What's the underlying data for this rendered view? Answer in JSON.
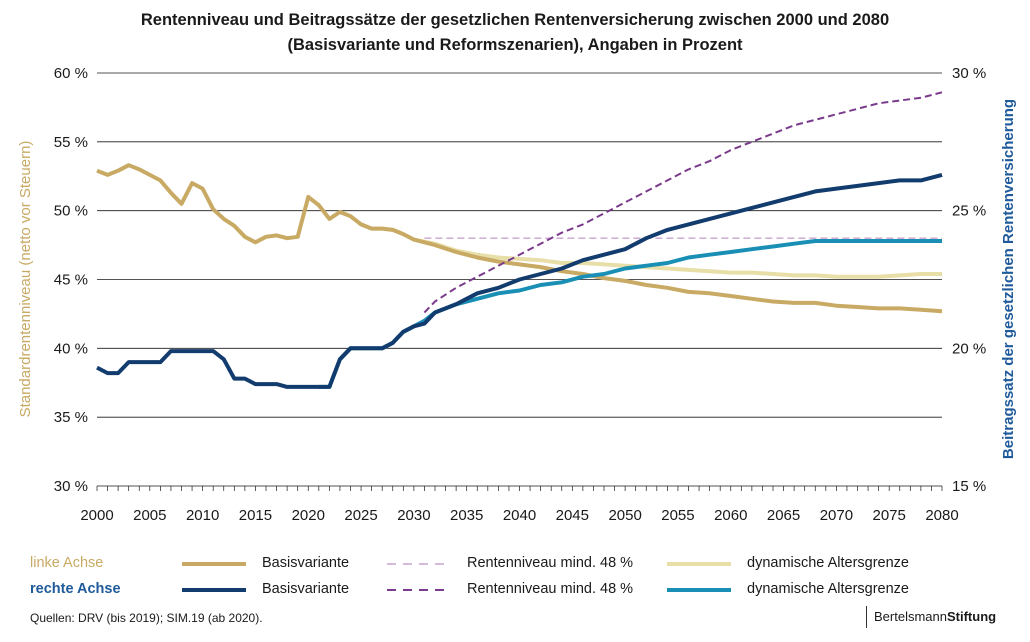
{
  "title_line1": "Rentenniveau und Beitragssätze der gesetzlichen Rentenversicherung zwischen 2000 und 2080",
  "title_line2": "(Basisvariante und Reformszenarien), Angaben in Prozent",
  "colors": {
    "basis_left": "#c8aa64",
    "basis_right": "#123b6e",
    "rn48_left": "#c9a3cf",
    "rn48_right": "#7b3b8c",
    "dyn_left": "#e8dea8",
    "dyn_right": "#1a8fb6",
    "left_axis_title": "#c8aa64",
    "right_axis_title": "#1f5a9a"
  },
  "chart_data": {
    "type": "line",
    "title": "Rentenniveau und Beitragssätze der gesetzlichen Rentenversicherung zwischen 2000 und 2080 (Basisvariante und Reformszenarien), Angaben in Prozent",
    "x_ticks": [
      "2000",
      "2005",
      "2010",
      "2015",
      "2020",
      "2025",
      "2030",
      "2035",
      "2040",
      "2045",
      "2050",
      "2055",
      "2060",
      "2065",
      "2070",
      "2075",
      "2080"
    ],
    "xlim": [
      2000,
      2080
    ],
    "y_left": {
      "label": "Standardrentenniveau (netto vor Steuern)",
      "lim": [
        30,
        60
      ],
      "ticks": [
        "30 %",
        "35 %",
        "40 %",
        "45 %",
        "50 %",
        "55 %",
        "60 %"
      ]
    },
    "y_right": {
      "label": "Beitragssatz der gesetzlichen Rentenversicherung",
      "lim": [
        15,
        30
      ],
      "ticks": [
        "15 %",
        "20 %",
        "25 %",
        "30 %"
      ]
    },
    "grid": "horizontal",
    "series": [
      {
        "name": "Basisvariante",
        "axis": "left",
        "style": "solid",
        "color_key": "basis_left",
        "points": [
          [
            2000,
            52.9
          ],
          [
            2001,
            52.6
          ],
          [
            2002,
            52.9
          ],
          [
            2003,
            53.3
          ],
          [
            2004,
            53.0
          ],
          [
            2005,
            52.6
          ],
          [
            2006,
            52.2
          ],
          [
            2007,
            51.3
          ],
          [
            2008,
            50.5
          ],
          [
            2009,
            52.0
          ],
          [
            2010,
            51.6
          ],
          [
            2011,
            50.1
          ],
          [
            2012,
            49.4
          ],
          [
            2013,
            48.9
          ],
          [
            2014,
            48.1
          ],
          [
            2015,
            47.7
          ],
          [
            2016,
            48.1
          ],
          [
            2017,
            48.2
          ],
          [
            2018,
            48.0
          ],
          [
            2019,
            48.1
          ],
          [
            2020,
            51.0
          ],
          [
            2021,
            50.4
          ],
          [
            2022,
            49.4
          ],
          [
            2023,
            49.9
          ],
          [
            2024,
            49.6
          ],
          [
            2025,
            49.0
          ],
          [
            2026,
            48.7
          ],
          [
            2027,
            48.7
          ],
          [
            2028,
            48.6
          ],
          [
            2029,
            48.3
          ],
          [
            2030,
            47.9
          ],
          [
            2032,
            47.5
          ],
          [
            2034,
            47.0
          ],
          [
            2036,
            46.6
          ],
          [
            2038,
            46.3
          ],
          [
            2040,
            46.1
          ],
          [
            2042,
            45.9
          ],
          [
            2044,
            45.6
          ],
          [
            2046,
            45.4
          ],
          [
            2048,
            45.1
          ],
          [
            2050,
            44.9
          ],
          [
            2052,
            44.6
          ],
          [
            2054,
            44.4
          ],
          [
            2056,
            44.1
          ],
          [
            2058,
            44.0
          ],
          [
            2060,
            43.8
          ],
          [
            2062,
            43.6
          ],
          [
            2064,
            43.4
          ],
          [
            2066,
            43.3
          ],
          [
            2068,
            43.3
          ],
          [
            2070,
            43.1
          ],
          [
            2072,
            43.0
          ],
          [
            2074,
            42.9
          ],
          [
            2076,
            42.9
          ],
          [
            2078,
            42.8
          ],
          [
            2080,
            42.7
          ]
        ]
      },
      {
        "name": "Rentenniveau mind. 48 %",
        "axis": "left",
        "style": "dashed",
        "color_key": "rn48_left",
        "points": [
          [
            2031,
            48.0
          ],
          [
            2080,
            48.0
          ]
        ]
      },
      {
        "name": "dynamische Altersgrenze",
        "axis": "left",
        "style": "solid",
        "color_key": "dyn_left",
        "points": [
          [
            2023,
            49.9
          ],
          [
            2024,
            49.6
          ],
          [
            2025,
            49.0
          ],
          [
            2026,
            48.7
          ],
          [
            2027,
            48.7
          ],
          [
            2028,
            48.6
          ],
          [
            2029,
            48.3
          ],
          [
            2030,
            47.9
          ],
          [
            2032,
            47.6
          ],
          [
            2034,
            47.1
          ],
          [
            2036,
            46.8
          ],
          [
            2038,
            46.6
          ],
          [
            2040,
            46.5
          ],
          [
            2042,
            46.4
          ],
          [
            2044,
            46.2
          ],
          [
            2046,
            46.2
          ],
          [
            2048,
            46.1
          ],
          [
            2050,
            46.0
          ],
          [
            2052,
            45.9
          ],
          [
            2054,
            45.8
          ],
          [
            2056,
            45.7
          ],
          [
            2058,
            45.6
          ],
          [
            2060,
            45.5
          ],
          [
            2062,
            45.5
          ],
          [
            2064,
            45.4
          ],
          [
            2066,
            45.3
          ],
          [
            2068,
            45.3
          ],
          [
            2070,
            45.2
          ],
          [
            2072,
            45.2
          ],
          [
            2074,
            45.2
          ],
          [
            2076,
            45.3
          ],
          [
            2078,
            45.4
          ],
          [
            2080,
            45.4
          ]
        ]
      },
      {
        "name": "Basisvariante",
        "axis": "right",
        "style": "solid",
        "color_key": "basis_right",
        "points": [
          [
            2000,
            19.3
          ],
          [
            2001,
            19.1
          ],
          [
            2002,
            19.1
          ],
          [
            2003,
            19.5
          ],
          [
            2004,
            19.5
          ],
          [
            2005,
            19.5
          ],
          [
            2006,
            19.5
          ],
          [
            2007,
            19.9
          ],
          [
            2008,
            19.9
          ],
          [
            2009,
            19.9
          ],
          [
            2010,
            19.9
          ],
          [
            2011,
            19.9
          ],
          [
            2012,
            19.6
          ],
          [
            2013,
            18.9
          ],
          [
            2014,
            18.9
          ],
          [
            2015,
            18.7
          ],
          [
            2016,
            18.7
          ],
          [
            2017,
            18.7
          ],
          [
            2018,
            18.6
          ],
          [
            2019,
            18.6
          ],
          [
            2020,
            18.6
          ],
          [
            2021,
            18.6
          ],
          [
            2022,
            18.6
          ],
          [
            2023,
            19.6
          ],
          [
            2024,
            20.0
          ],
          [
            2025,
            20.0
          ],
          [
            2026,
            20.0
          ],
          [
            2027,
            20.0
          ],
          [
            2028,
            20.2
          ],
          [
            2029,
            20.6
          ],
          [
            2030,
            20.8
          ],
          [
            2031,
            20.9
          ],
          [
            2032,
            21.3
          ],
          [
            2034,
            21.6
          ],
          [
            2036,
            22.0
          ],
          [
            2038,
            22.2
          ],
          [
            2040,
            22.5
          ],
          [
            2042,
            22.7
          ],
          [
            2044,
            22.9
          ],
          [
            2046,
            23.2
          ],
          [
            2048,
            23.4
          ],
          [
            2050,
            23.6
          ],
          [
            2052,
            24.0
          ],
          [
            2054,
            24.3
          ],
          [
            2056,
            24.5
          ],
          [
            2058,
            24.7
          ],
          [
            2060,
            24.9
          ],
          [
            2062,
            25.1
          ],
          [
            2064,
            25.3
          ],
          [
            2066,
            25.5
          ],
          [
            2068,
            25.7
          ],
          [
            2070,
            25.8
          ],
          [
            2072,
            25.9
          ],
          [
            2074,
            26.0
          ],
          [
            2076,
            26.1
          ],
          [
            2078,
            26.1
          ],
          [
            2080,
            26.3
          ]
        ]
      },
      {
        "name": "Rentenniveau mind. 48 %",
        "axis": "right",
        "style": "dashed",
        "color_key": "rn48_right",
        "points": [
          [
            2031,
            21.3
          ],
          [
            2032,
            21.7
          ],
          [
            2034,
            22.2
          ],
          [
            2036,
            22.6
          ],
          [
            2038,
            23.0
          ],
          [
            2040,
            23.4
          ],
          [
            2042,
            23.8
          ],
          [
            2044,
            24.2
          ],
          [
            2046,
            24.5
          ],
          [
            2048,
            24.9
          ],
          [
            2050,
            25.3
          ],
          [
            2052,
            25.7
          ],
          [
            2054,
            26.1
          ],
          [
            2056,
            26.5
          ],
          [
            2058,
            26.8
          ],
          [
            2060,
            27.2
          ],
          [
            2062,
            27.5
          ],
          [
            2064,
            27.8
          ],
          [
            2066,
            28.1
          ],
          [
            2068,
            28.3
          ],
          [
            2070,
            28.5
          ],
          [
            2072,
            28.7
          ],
          [
            2074,
            28.9
          ],
          [
            2076,
            29.0
          ],
          [
            2078,
            29.1
          ],
          [
            2080,
            29.3
          ]
        ]
      },
      {
        "name": "dynamische Altersgrenze",
        "axis": "right",
        "style": "solid",
        "color_key": "dyn_right",
        "points": [
          [
            2021,
            18.6
          ],
          [
            2022,
            18.6
          ],
          [
            2023,
            19.6
          ],
          [
            2024,
            20.0
          ],
          [
            2025,
            20.0
          ],
          [
            2026,
            20.0
          ],
          [
            2027,
            20.0
          ],
          [
            2028,
            20.2
          ],
          [
            2029,
            20.6
          ],
          [
            2030,
            20.8
          ],
          [
            2031,
            21.0
          ],
          [
            2032,
            21.3
          ],
          [
            2034,
            21.6
          ],
          [
            2036,
            21.8
          ],
          [
            2038,
            22.0
          ],
          [
            2040,
            22.1
          ],
          [
            2042,
            22.3
          ],
          [
            2044,
            22.4
          ],
          [
            2046,
            22.6
          ],
          [
            2048,
            22.7
          ],
          [
            2050,
            22.9
          ],
          [
            2052,
            23.0
          ],
          [
            2054,
            23.1
          ],
          [
            2056,
            23.3
          ],
          [
            2058,
            23.4
          ],
          [
            2060,
            23.5
          ],
          [
            2062,
            23.6
          ],
          [
            2064,
            23.7
          ],
          [
            2066,
            23.8
          ],
          [
            2068,
            23.9
          ],
          [
            2070,
            23.9
          ],
          [
            2072,
            23.9
          ],
          [
            2074,
            23.9
          ],
          [
            2076,
            23.9
          ],
          [
            2078,
            23.9
          ],
          [
            2080,
            23.9
          ]
        ]
      }
    ]
  },
  "legend": {
    "left_axis_label": "linke Achse",
    "right_axis_label": "rechte Achse",
    "left_items": [
      "Basisvariante",
      "Rentenniveau mind. 48 %",
      "dynamische Altersgrenze"
    ],
    "right_items": [
      "Basisvariante",
      "Rentenniveau mind. 48 %",
      "dynamische Altersgrenze"
    ]
  },
  "source": "Quellen: DRV (bis 2019); SIM.19 (ab 2020).",
  "brand_regular": "Bertelsmann",
  "brand_bold": "Stiftung"
}
